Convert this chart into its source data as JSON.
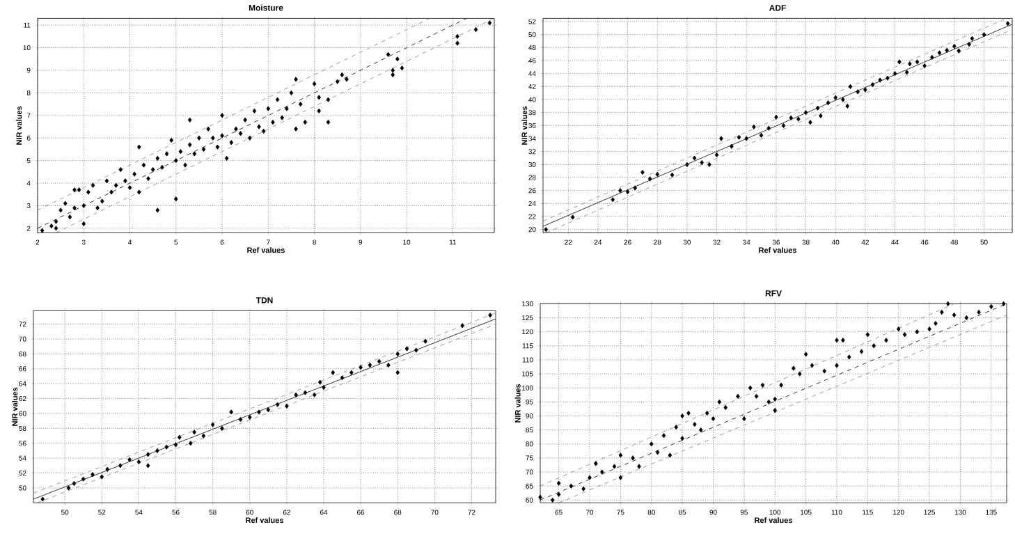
{
  "chart_data": [
    {
      "type": "scatter",
      "title": "Moisture",
      "xlabel": "Ref values",
      "ylabel": "NIR values",
      "xlim": [
        2,
        11.9
      ],
      "ylim": [
        1.8,
        11.3
      ],
      "xticks": [
        2,
        3,
        4,
        5,
        6,
        7,
        8,
        9,
        10,
        11
      ],
      "yticks": [
        2,
        3,
        4,
        5,
        6,
        7,
        8,
        9,
        10,
        11
      ],
      "grid": true,
      "series": [
        {
          "color": "#000000",
          "marker": "diamond",
          "x": [
            2.1,
            2.3,
            2.4,
            2.4,
            2.5,
            2.6,
            2.7,
            2.8,
            2.8,
            2.9,
            3.0,
            3.0,
            3.1,
            3.2,
            3.3,
            3.4,
            3.5,
            3.6,
            3.7,
            3.8,
            3.9,
            4.0,
            4.1,
            4.2,
            4.2,
            4.3,
            4.4,
            4.5,
            4.6,
            4.6,
            4.7,
            4.8,
            4.9,
            5.0,
            5.0,
            5.1,
            5.2,
            5.3,
            5.3,
            5.4,
            5.5,
            5.6,
            5.7,
            5.8,
            5.9,
            6.0,
            6.0,
            6.1,
            6.2,
            6.3,
            6.4,
            6.5,
            6.6,
            6.7,
            6.8,
            6.9,
            7.0,
            7.1,
            7.2,
            7.3,
            7.4,
            7.5,
            7.6,
            7.6,
            7.7,
            7.8,
            8.0,
            8.1,
            8.1,
            8.3,
            8.3,
            8.5,
            8.6,
            8.7,
            9.6,
            9.7,
            9.7,
            9.8,
            9.9,
            11.1,
            11.1,
            11.5,
            11.8
          ],
          "values": [
            1.9,
            2.1,
            2.3,
            2.0,
            2.8,
            3.1,
            2.5,
            2.9,
            3.7,
            3.7,
            3.0,
            2.2,
            3.6,
            3.9,
            2.9,
            3.2,
            4.1,
            3.6,
            3.9,
            4.6,
            4.1,
            3.8,
            4.4,
            5.6,
            3.6,
            4.8,
            4.2,
            4.6,
            2.8,
            5.1,
            4.7,
            5.3,
            5.9,
            3.3,
            5.0,
            5.4,
            4.8,
            6.8,
            5.7,
            5.3,
            6.0,
            5.5,
            6.4,
            6.0,
            5.6,
            7.0,
            6.1,
            5.1,
            5.8,
            6.4,
            6.2,
            6.8,
            6.0,
            7.2,
            6.5,
            6.3,
            7.3,
            6.7,
            7.7,
            6.9,
            7.3,
            8.0,
            6.4,
            8.6,
            7.5,
            6.7,
            8.4,
            7.2,
            7.8,
            6.7,
            7.7,
            8.5,
            8.8,
            8.6,
            9.7,
            8.8,
            9.0,
            9.5,
            9.1,
            10.2,
            10.5,
            10.8,
            11.1
          ]
        },
        {
          "type": "line",
          "color": "#000000",
          "line_style": "dashed",
          "x": [
            2,
            11.3
          ],
          "values": [
            2.0,
            11.3
          ]
        },
        {
          "type": "line",
          "color": "#808080",
          "line_style": "dashed",
          "x": [
            2,
            10.5
          ],
          "values": [
            2.8,
            11.3
          ]
        },
        {
          "type": "line",
          "color": "#808080",
          "line_style": "dashed",
          "x": [
            2.4,
            11.9
          ],
          "values": [
            1.8,
            11.3
          ]
        }
      ]
    },
    {
      "type": "scatter",
      "title": "ADF",
      "xlabel": "Ref values",
      "ylabel": "NIR values",
      "xlim": [
        20.3,
        51.9
      ],
      "ylim": [
        19.5,
        52.5
      ],
      "xticks": [
        22,
        24,
        26,
        28,
        30,
        32,
        34,
        36,
        38,
        40,
        42,
        44,
        46,
        48,
        50
      ],
      "yticks": [
        20,
        22,
        24,
        26,
        28,
        30,
        32,
        34,
        36,
        38,
        40,
        42,
        44,
        46,
        48,
        50,
        52
      ],
      "grid": true,
      "series": [
        {
          "color": "#000000",
          "marker": "diamond",
          "x": [
            20.5,
            22.3,
            25,
            25.5,
            26,
            26.5,
            27,
            27.5,
            28,
            29,
            30,
            30.5,
            31,
            31.5,
            32,
            32.3,
            33,
            33.5,
            34,
            34.5,
            35,
            35.5,
            36,
            36.5,
            37,
            37.5,
            38,
            38.3,
            38.8,
            39,
            39.5,
            40,
            40.5,
            40.8,
            41,
            41.5,
            42,
            42.5,
            43,
            43.5,
            44,
            44.3,
            44.8,
            45,
            45.5,
            46,
            46.5,
            47,
            47.5,
            48,
            48.3,
            49,
            49.2,
            50,
            51.6
          ],
          "values": [
            20,
            21.9,
            24.6,
            26,
            25.8,
            26.4,
            28.8,
            27.8,
            28.5,
            28.4,
            30,
            31,
            30.3,
            30,
            31.5,
            34,
            32.8,
            34.2,
            34,
            35.8,
            34.5,
            35.6,
            37.3,
            36,
            37.2,
            37,
            38,
            36.5,
            38.7,
            37.5,
            39.5,
            40.3,
            40,
            39,
            42,
            41.2,
            41.5,
            42.3,
            43,
            43.3,
            44,
            45.8,
            44.2,
            45.5,
            45.8,
            45.2,
            46.5,
            47.2,
            47.6,
            48.2,
            47.5,
            48.5,
            49.4,
            50,
            51.7
          ]
        },
        {
          "type": "line",
          "color": "#000000",
          "line_style": "solid",
          "x": [
            20.3,
            51.9
          ],
          "values": [
            20.5,
            51.6
          ]
        },
        {
          "type": "line",
          "color": "#808080",
          "line_style": "dashed",
          "x": [
            20.3,
            51.5
          ],
          "values": [
            21.3,
            52.5
          ]
        },
        {
          "type": "line",
          "color": "#808080",
          "line_style": "dashed",
          "x": [
            20.5,
            51.9
          ],
          "values": [
            19.5,
            50.8
          ]
        }
      ]
    },
    {
      "type": "scatter",
      "title": "TDN",
      "xlabel": "Ref values",
      "ylabel": "NIR values",
      "xlim": [
        48.3,
        73.3
      ],
      "ylim": [
        48,
        73.8
      ],
      "xticks": [
        50,
        52,
        54,
        56,
        58,
        60,
        62,
        64,
        66,
        68,
        70,
        72
      ],
      "yticks": [
        50,
        52,
        54,
        56,
        58,
        60,
        62,
        64,
        66,
        68,
        70,
        72
      ],
      "grid": true,
      "series": [
        {
          "color": "#000000",
          "marker": "diamond",
          "x": [
            48.8,
            50.2,
            50.5,
            51,
            51.5,
            52,
            52.3,
            53,
            53.5,
            54,
            54.5,
            54.5,
            55,
            55.5,
            56,
            56.2,
            56.8,
            57,
            57.5,
            58,
            58.5,
            59,
            59.5,
            60,
            60.5,
            61,
            61.5,
            62,
            62.5,
            63,
            63.5,
            63.8,
            64,
            64.5,
            65,
            65.5,
            66,
            66.5,
            67,
            67.5,
            68,
            68,
            68.5,
            69,
            69.5,
            71.5,
            73
          ],
          "values": [
            48.5,
            50,
            50.6,
            51.2,
            51.8,
            51.5,
            52.5,
            53,
            53.8,
            53.5,
            54.5,
            53,
            55,
            55.5,
            55.8,
            56.8,
            56,
            57.5,
            57,
            58.5,
            58,
            60.2,
            59.2,
            59.5,
            60.2,
            60.5,
            61.2,
            61,
            62.5,
            62.8,
            62.5,
            64.2,
            63.5,
            65.5,
            64.8,
            65.5,
            66.2,
            66.5,
            67,
            66.5,
            65.5,
            68,
            68.7,
            68.5,
            69.7,
            71.8,
            73.2
          ]
        },
        {
          "type": "line",
          "color": "#000000",
          "line_style": "solid",
          "x": [
            48.3,
            73.3
          ],
          "values": [
            48.5,
            72.7
          ]
        },
        {
          "type": "line",
          "color": "#808080",
          "line_style": "dashed",
          "x": [
            48.3,
            73.3
          ],
          "values": [
            49.3,
            73.5
          ]
        },
        {
          "type": "line",
          "color": "#808080",
          "line_style": "dashed",
          "x": [
            48.5,
            73.3
          ],
          "values": [
            48,
            72
          ]
        }
      ]
    },
    {
      "type": "scatter",
      "title": "RFV",
      "xlabel": "Ref values",
      "ylabel": "NIR values",
      "xlim": [
        62,
        137.5
      ],
      "ylim": [
        59,
        130
      ],
      "xticks": [
        65,
        70,
        75,
        80,
        85,
        90,
        95,
        100,
        105,
        110,
        115,
        120,
        125,
        130,
        135
      ],
      "yticks": [
        60,
        65,
        70,
        75,
        80,
        85,
        90,
        95,
        100,
        105,
        110,
        115,
        120,
        125,
        130
      ],
      "grid": true,
      "series": [
        {
          "color": "#000000",
          "marker": "diamond",
          "x": [
            62,
            64,
            65,
            65,
            67,
            69,
            70,
            71,
            72,
            74,
            75,
            75,
            77,
            78,
            80,
            81,
            82,
            83,
            84,
            85,
            85,
            86,
            87,
            88,
            89,
            90,
            91,
            92,
            94,
            95,
            96,
            97,
            98,
            99,
            100,
            100,
            101,
            103,
            104,
            105,
            106,
            108,
            110,
            110,
            111,
            112,
            114,
            115,
            116,
            118,
            120,
            121,
            123,
            125,
            126,
            127,
            128,
            129,
            131,
            133,
            135,
            137
          ],
          "values": [
            61,
            60,
            62,
            66,
            65,
            64,
            68,
            73,
            70,
            72,
            68,
            76,
            75,
            72,
            80,
            77,
            83,
            76,
            86,
            82,
            90,
            91,
            87,
            85,
            91,
            89,
            95,
            93,
            97,
            89,
            100,
            97,
            101,
            95,
            92,
            96,
            101,
            107,
            105,
            112,
            108,
            106,
            108,
            117,
            117,
            111,
            113,
            119,
            115,
            117,
            121,
            119,
            120,
            121,
            123,
            127,
            130,
            126,
            125,
            127,
            129,
            130
          ]
        },
        {
          "type": "line",
          "color": "#000000",
          "line_style": "dashed",
          "x": [
            62,
            137.5
          ],
          "values": [
            60,
            130
          ]
        },
        {
          "type": "line",
          "color": "#808080",
          "line_style": "dashed",
          "x": [
            62,
            129
          ],
          "values": [
            65,
            130
          ]
        },
        {
          "type": "line",
          "color": "#808080",
          "line_style": "dashed",
          "x": [
            65,
            137.5
          ],
          "values": [
            59,
            126
          ]
        }
      ]
    }
  ]
}
